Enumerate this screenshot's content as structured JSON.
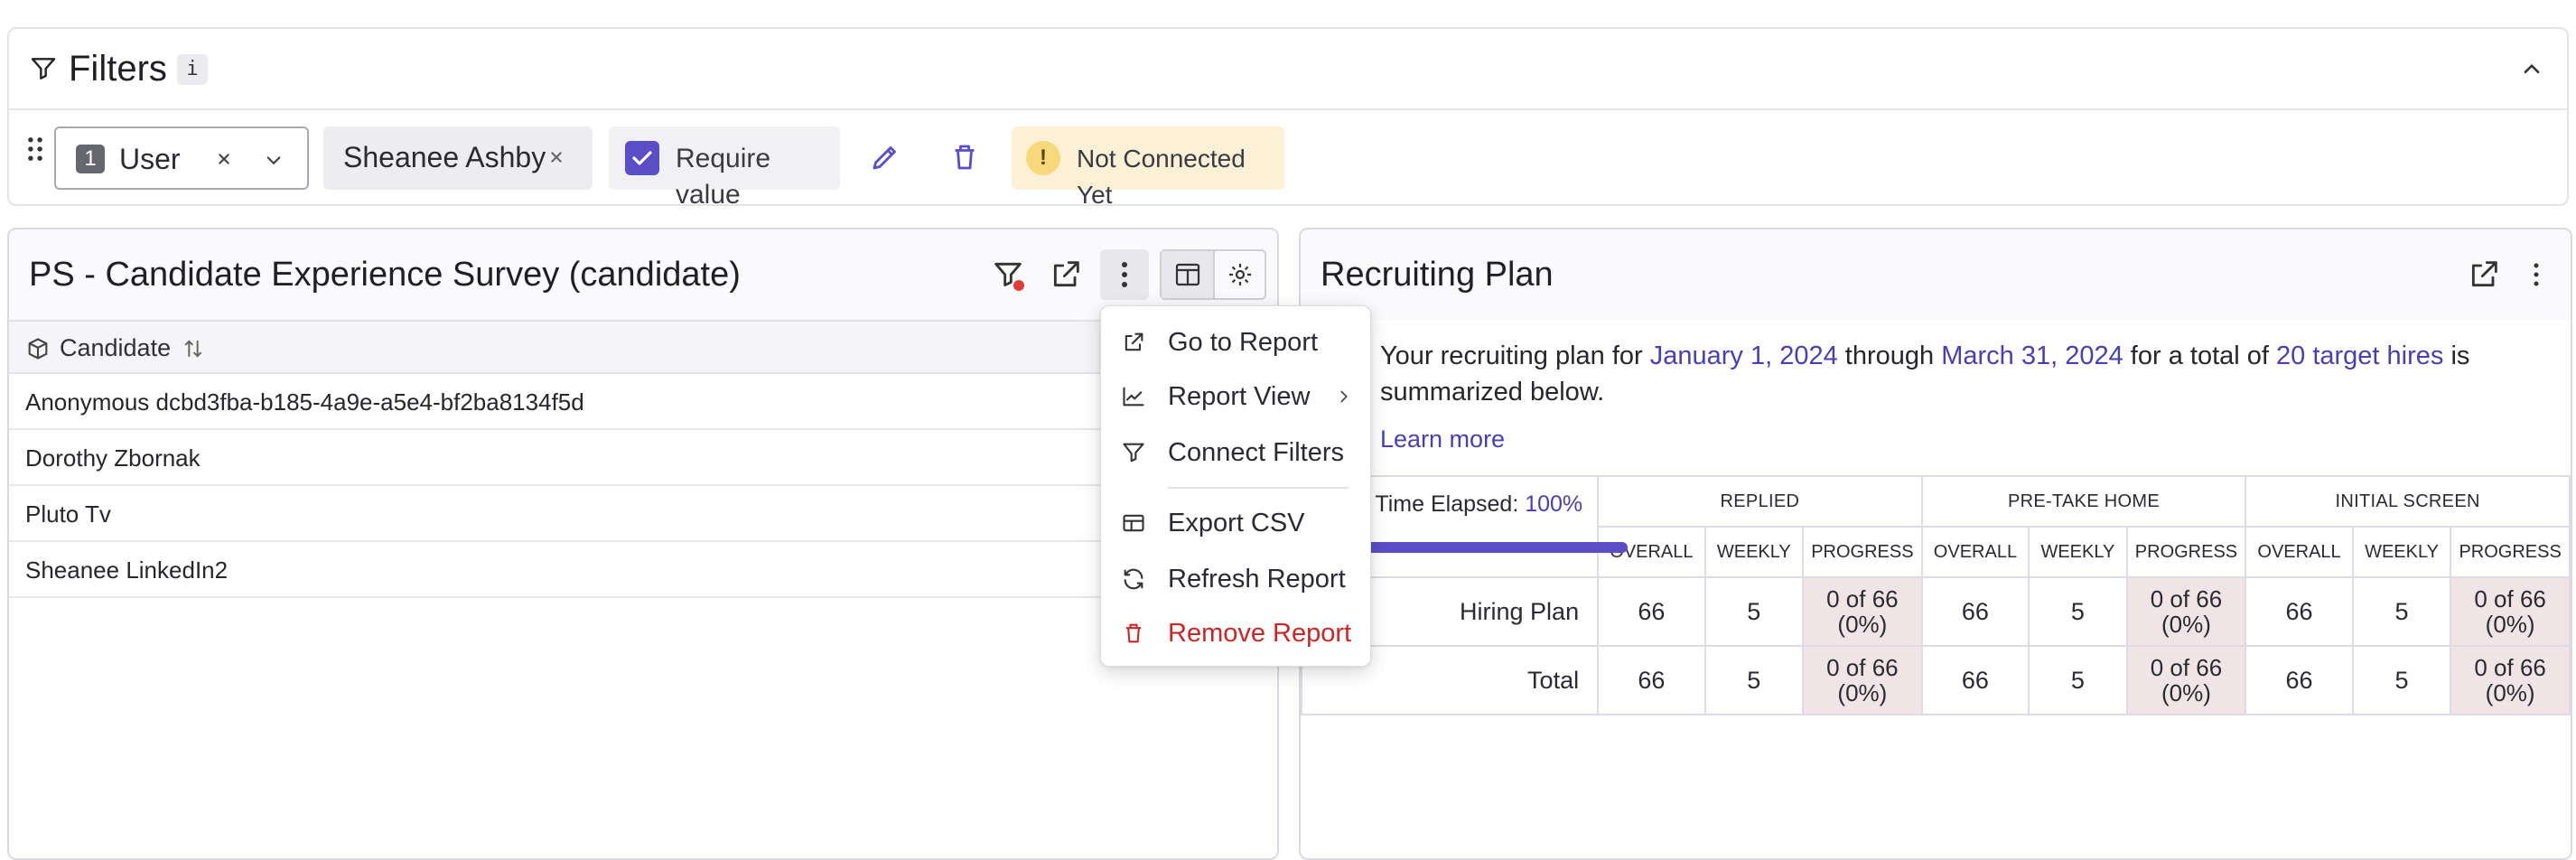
{
  "filters": {
    "title": "Filters",
    "info": "i",
    "user_filter": {
      "index": "1",
      "label": "User"
    },
    "value_chip": "Sheanee Ashby",
    "require_value_label": "Require value",
    "require_value_checked": true,
    "status_label": "Not Connected Yet"
  },
  "left_card": {
    "title": "PS - Candidate Experience Survey (candidate)",
    "column_header": "Candidate",
    "rows": [
      "Anonymous dcbd3fba-b185-4a9e-a5e4-bf2ba8134f5d",
      "Dorothy Zbornak",
      "Pluto Tv",
      "Sheanee LinkedIn2"
    ]
  },
  "menu": {
    "items": [
      {
        "label": "Go to Report",
        "icon": "external-link-icon"
      },
      {
        "label": "Report View",
        "icon": "line-chart-icon",
        "has_submenu": true
      },
      {
        "label": "Connect Filters",
        "icon": "filter-icon"
      },
      {
        "label": "Export CSV",
        "icon": "table-icon"
      },
      {
        "label": "Refresh Report",
        "icon": "refresh-icon"
      },
      {
        "label": "Remove Report",
        "icon": "trash-icon",
        "danger": true
      }
    ]
  },
  "right_card": {
    "title": "Recruiting Plan",
    "summary": {
      "prefix": "Your recruiting plan for ",
      "start_date": "January 1, 2024",
      "through": " through ",
      "end_date": "March 31, 2024",
      "for_total": " for a total of ",
      "target": "20 target hires",
      "suffix": " is summarized below."
    },
    "learn_more": "Learn more",
    "elapsed": {
      "label": "n Time Elapsed: ",
      "value": "100%"
    },
    "stages": [
      "REPLIED",
      "PRE-TAKE HOME",
      "INITIAL SCREEN"
    ],
    "sub_columns": [
      "OVERALL",
      "WEEKLY",
      "PROGRESS"
    ],
    "rows": [
      {
        "label": "Hiring Plan",
        "values": [
          "66",
          "5",
          "0 of 66 (0%)",
          "66",
          "5",
          "0 of 66 (0%)",
          "66",
          "5",
          "0 of 66 (0%)"
        ]
      },
      {
        "label": "Total",
        "values": [
          "66",
          "5",
          "0 of 66 (0%)",
          "66",
          "5",
          "0 of 66 (0%)",
          "66",
          "5",
          "0 of 66 (0%)"
        ]
      }
    ]
  },
  "colors": {
    "accent": "#5b4fc7",
    "link": "#4a3fb0",
    "danger": "#c72727",
    "warning_bg": "#fcf1d6",
    "progress_cell": "#f1e4e6"
  }
}
